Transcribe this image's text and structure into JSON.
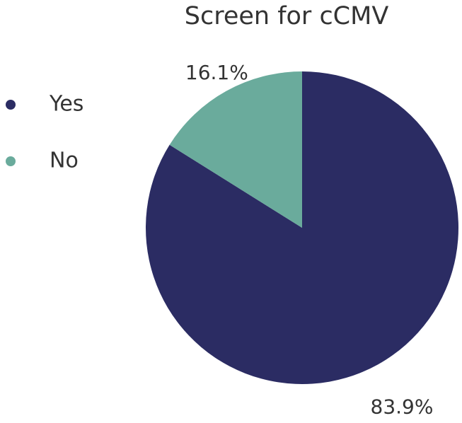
{
  "chart_data": {
    "type": "pie",
    "title": "Screen for cCMV",
    "categories": [
      "Yes",
      "No"
    ],
    "values": [
      83.9,
      16.1
    ],
    "value_labels": [
      "83.9%",
      "16.1%"
    ],
    "colors": [
      "#2b2c63",
      "#6aab9c"
    ],
    "legend": "left"
  }
}
